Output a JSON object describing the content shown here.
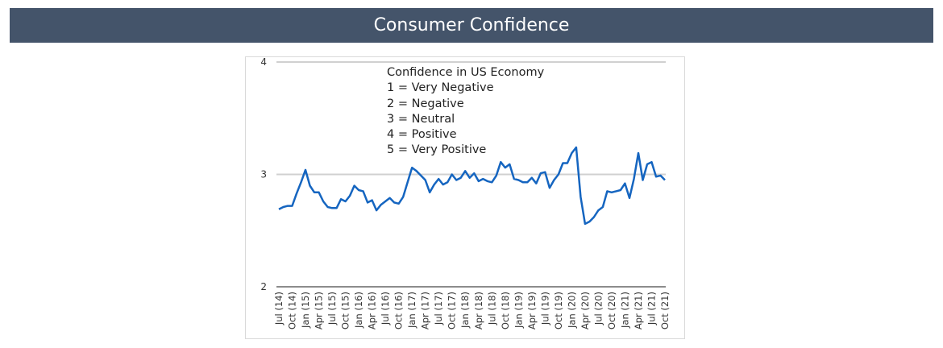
{
  "header": {
    "title": "Consumer Confidence"
  },
  "chart_data": {
    "type": "line",
    "title": "Consumer Confidence",
    "xlabel": "",
    "ylabel": "",
    "ylim": [
      2,
      4
    ],
    "yticks": [
      2,
      3,
      4
    ],
    "grid": true,
    "annotation": {
      "title": "Confidence in US Economy",
      "lines": [
        "1 = Very Negative",
        "2 = Negative",
        "3 = Neutral",
        "4 = Positive",
        "5 = Very Positive"
      ]
    },
    "x_tick_labels": [
      "Jul (14)",
      "Oct (14)",
      "Jan (15)",
      "Apr (15)",
      "Jul (15)",
      "Oct (15)",
      "Jan (16)",
      "Apr (16)",
      "Jul (16)",
      "Oct (16)",
      "Jan (17)",
      "Apr (17)",
      "Jul (17)",
      "Oct (17)",
      "Jan (18)",
      "Apr (18)",
      "Jul (18)",
      "Oct (18)",
      "Jan (19)",
      "Apr (19)",
      "Jul (19)",
      "Oct (19)",
      "Jan (20)",
      "Apr (20)",
      "Jul (20)",
      "Oct (20)",
      "Jan (21)",
      "Apr (21)",
      "Jul (21)",
      "Oct (21)"
    ],
    "series": [
      {
        "name": "Confidence in US Economy",
        "color": "#1565c0",
        "start": "Jul 2014",
        "frequency": "monthly",
        "values": [
          2.69,
          2.71,
          2.72,
          2.72,
          2.83,
          2.93,
          3.04,
          2.9,
          2.84,
          2.84,
          2.76,
          2.71,
          2.7,
          2.7,
          2.78,
          2.76,
          2.81,
          2.9,
          2.86,
          2.85,
          2.75,
          2.77,
          2.68,
          2.73,
          2.76,
          2.79,
          2.75,
          2.74,
          2.8,
          2.93,
          3.06,
          3.03,
          2.99,
          2.95,
          2.84,
          2.91,
          2.96,
          2.91,
          2.93,
          3.0,
          2.95,
          2.97,
          3.03,
          2.97,
          3.01,
          2.94,
          2.96,
          2.94,
          2.93,
          2.99,
          3.11,
          3.06,
          3.09,
          2.96,
          2.95,
          2.93,
          2.93,
          2.97,
          2.92,
          3.01,
          3.02,
          2.88,
          2.95,
          3.0,
          3.1,
          3.1,
          3.19,
          3.24,
          2.8,
          2.56,
          2.58,
          2.62,
          2.68,
          2.71,
          2.85,
          2.84,
          2.85,
          2.86,
          2.92,
          2.79,
          2.96,
          3.19,
          2.95,
          3.09,
          3.11,
          2.98,
          2.99,
          2.95
        ]
      }
    ]
  }
}
